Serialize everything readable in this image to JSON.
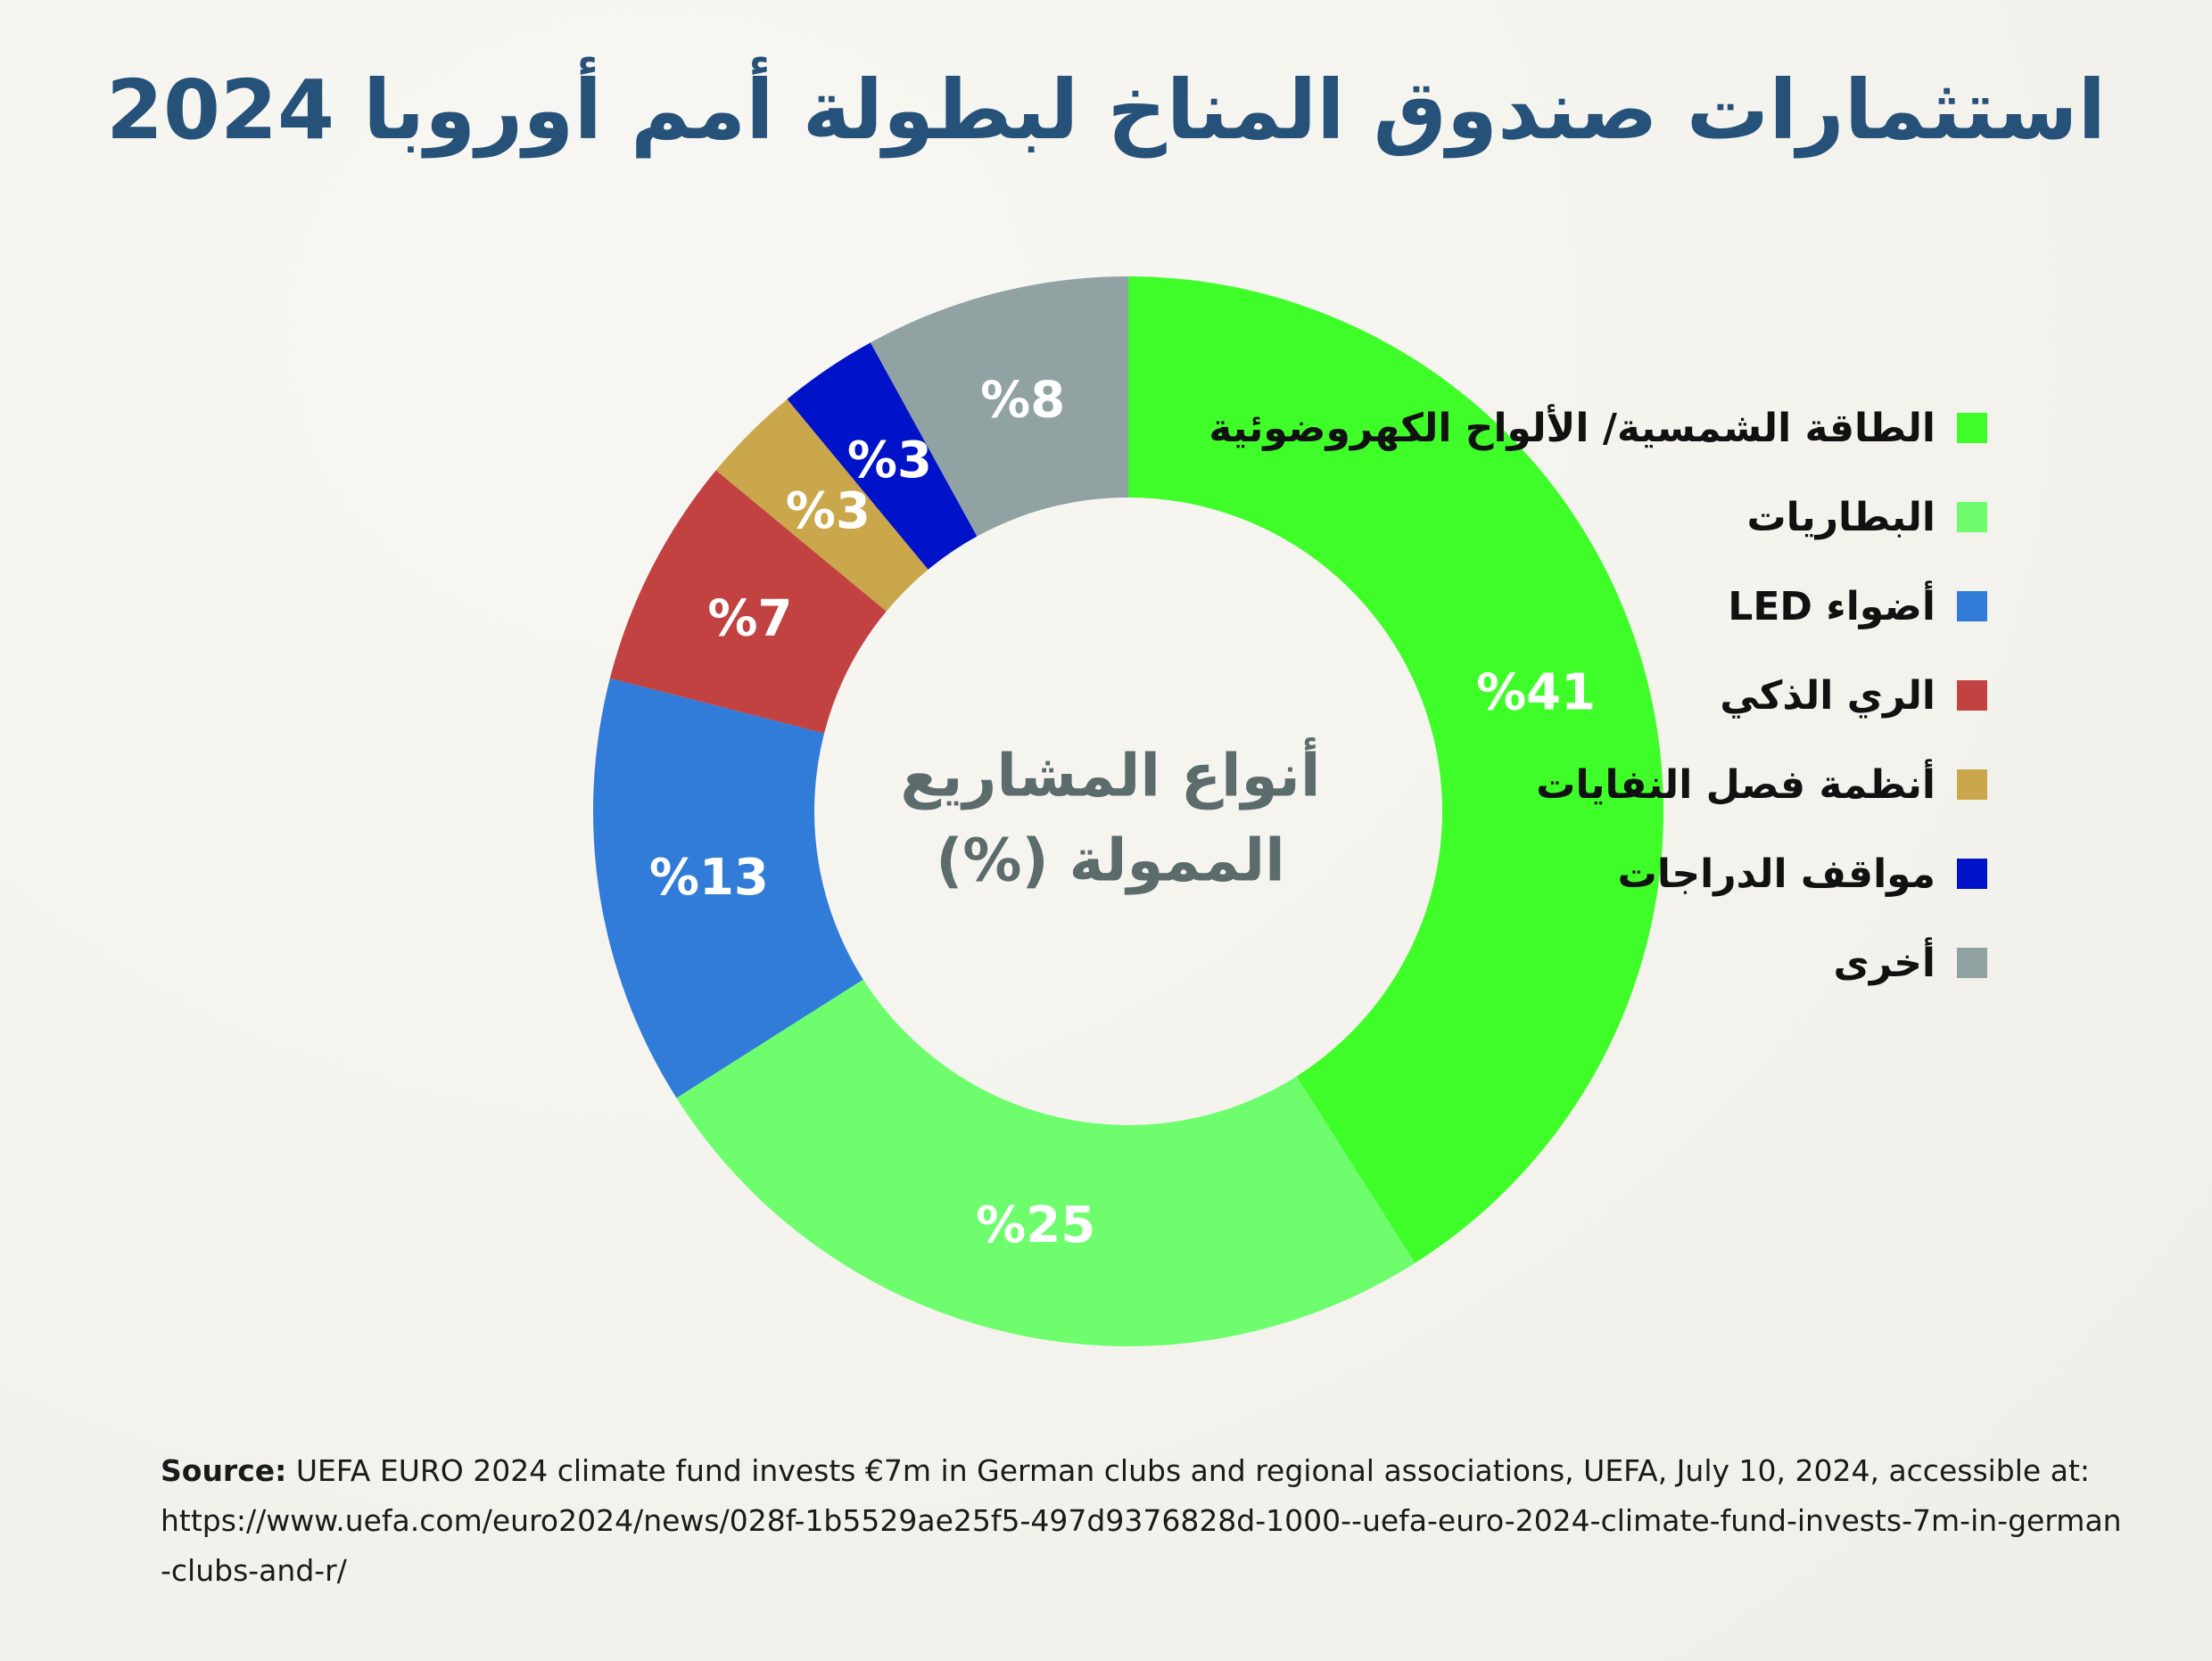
{
  "title": "استثمارات صندوق المناخ لبطولة أمم أوروبا 2024",
  "chart_data": {
    "type": "pie",
    "subtype": "donut",
    "title": "استثمارات صندوق المناخ لبطولة أمم أوروبا 2024",
    "center_label": [
      "أنواع المشاريع",
      "الممولة (%)"
    ],
    "start": "12 o'clock",
    "direction": "clockwise",
    "legend_position": "right",
    "slices": [
      {
        "name": "الطاقة الشمسية/ الألواح الكهروضوئية",
        "value": 41,
        "label": "%41",
        "color": "#3ffd28"
      },
      {
        "name": "البطاريات",
        "value": 25,
        "label": "%25",
        "color": "#6dfd6d"
      },
      {
        "name": "أضواء LED",
        "value": 13,
        "label": "%13",
        "color": "#317cd8"
      },
      {
        "name": "الري الذكي",
        "value": 7,
        "label": "%7",
        "color": "#c24141"
      },
      {
        "name": "أنظمة فصل النفايات",
        "value": 3,
        "label": "%3",
        "color": "#c9a74a"
      },
      {
        "name": "مواقف الدراجات",
        "value": 3,
        "label": "%3",
        "color": "#0013c8"
      },
      {
        "name": "أخرى",
        "value": 8,
        "label": "%8",
        "color": "#91a2a2"
      }
    ]
  },
  "source": {
    "prefix": "Source:",
    "text": " UEFA EURO 2024 climate fund invests €7m in German clubs and regional associations, UEFA, July 10, 2024, accessible at:",
    "url": "https://www.uefa.com/euro2024/news/028f-1b5529ae25f5-497d9376828d-1000--uefa-euro-2024-climate-fund-invests-7m-in-german-clubs-and-r/"
  }
}
